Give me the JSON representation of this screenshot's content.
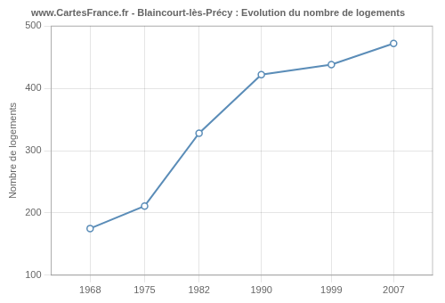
{
  "chart_data": {
    "type": "line",
    "title": "www.CartesFrance.fr - Blaincourt-lès-Précy : Evolution du nombre de logements",
    "ylabel": "Nombre de logements",
    "x": [
      1968,
      1975,
      1982,
      1990,
      1999,
      2007
    ],
    "values": [
      175,
      211,
      328,
      422,
      438,
      472
    ],
    "xlim": [
      1963,
      2012
    ],
    "ylim": [
      100,
      500
    ],
    "xticks": [
      1968,
      1975,
      1982,
      1990,
      1999,
      2007
    ],
    "yticks": [
      100,
      200,
      300,
      400,
      500
    ],
    "color": "#5b8db8",
    "marker": "circle",
    "grid": true
  }
}
